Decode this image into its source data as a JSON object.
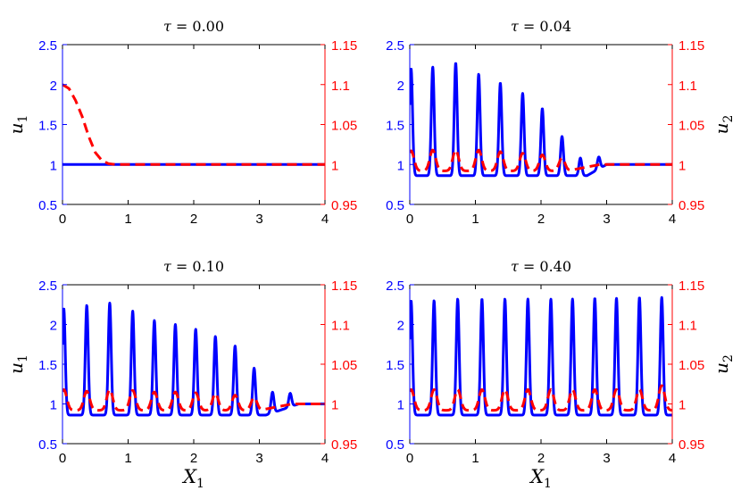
{
  "figure": {
    "colors": {
      "u1": "#0000ff",
      "u2": "#ff0000",
      "axes": "#000000"
    }
  },
  "chart_data": [
    {
      "type": "line",
      "title": "τ = 0.00",
      "title_parts": {
        "sym": "τ",
        "rest": " = 0.00"
      },
      "xlabel": "",
      "ylabel_left": {
        "base": "u",
        "sub": "1"
      },
      "ylabel_right": null,
      "xlim": [
        0,
        4
      ],
      "ylim_left": [
        0.5,
        2.5
      ],
      "ylim_right": [
        0.95,
        1.15
      ],
      "xticks": [
        "0",
        "1",
        "2",
        "3",
        "4"
      ],
      "yticks_left": [
        "0.5",
        "1",
        "1.5",
        "2",
        "2.5"
      ],
      "yticks_right": [
        "0.95",
        "1",
        "1.05",
        "1.1",
        "1.15"
      ],
      "series": [
        {
          "name": "u1",
          "axis": "left",
          "style": "solid",
          "model": "flat",
          "base": 1.0
        },
        {
          "name": "u2",
          "axis": "right",
          "style": "dashed",
          "model": "decay",
          "points": [
            [
              0,
              1.1
            ],
            [
              0.1,
              1.095
            ],
            [
              0.2,
              1.08
            ],
            [
              0.3,
              1.06
            ],
            [
              0.4,
              1.035
            ],
            [
              0.5,
              1.015
            ],
            [
              0.6,
              1.005
            ],
            [
              0.7,
              1.001
            ],
            [
              0.8,
              1.0
            ],
            [
              4,
              1.0
            ]
          ]
        }
      ]
    },
    {
      "type": "line",
      "title": "τ = 0.04",
      "title_parts": {
        "sym": "τ",
        "rest": " = 0.04"
      },
      "xlabel": "",
      "ylabel_left": null,
      "ylabel_right": {
        "base": "u",
        "sub": "2"
      },
      "xlim": [
        0,
        4
      ],
      "ylim_left": [
        0.5,
        2.5
      ],
      "ylim_right": [
        0.95,
        1.15
      ],
      "xticks": [
        "0",
        "1",
        "2",
        "3",
        "4"
      ],
      "yticks_left": [
        "0.5",
        "1",
        "1.5",
        "2",
        "2.5"
      ],
      "yticks_right": [
        "0.95",
        "1",
        "1.05",
        "1.1",
        "1.15"
      ],
      "series": [
        {
          "name": "u1",
          "axis": "left",
          "style": "solid",
          "model": "spikes",
          "base": 0.86,
          "tail": 1.0,
          "spikes": [
            [
              0.02,
              2.2
            ],
            [
              0.35,
              2.22
            ],
            [
              0.7,
              2.27
            ],
            [
              1.05,
              2.13
            ],
            [
              1.38,
              2.02
            ],
            [
              1.72,
              1.89
            ],
            [
              2.02,
              1.7
            ],
            [
              2.32,
              1.35
            ],
            [
              2.6,
              1.08
            ],
            [
              2.88,
              1.01
            ]
          ],
          "fade": [
            2.7,
            3.0
          ]
        },
        {
          "name": "u2",
          "axis": "right",
          "style": "dashed",
          "model": "bumps",
          "base": 0.992,
          "tail": 1.0,
          "bumps": [
            [
              0.02,
              1.017
            ],
            [
              0.35,
              1.018
            ],
            [
              0.7,
              1.018
            ],
            [
              1.05,
              1.018
            ],
            [
              1.38,
              1.016
            ],
            [
              1.72,
              1.014
            ],
            [
              2.02,
              1.012
            ],
            [
              2.32,
              1.008
            ]
          ],
          "fade": [
            2.4,
            2.9
          ]
        }
      ]
    },
    {
      "type": "line",
      "title": "τ = 0.10",
      "title_parts": {
        "sym": "τ",
        "rest": " = 0.10"
      },
      "xlabel": "X1",
      "xlabel_parts": {
        "base": "X",
        "sub": "1"
      },
      "ylabel_left": {
        "base": "u",
        "sub": "1"
      },
      "ylabel_right": null,
      "xlim": [
        0,
        4
      ],
      "ylim_left": [
        0.5,
        2.5
      ],
      "ylim_right": [
        0.95,
        1.15
      ],
      "xticks": [
        "0",
        "1",
        "2",
        "3",
        "4"
      ],
      "yticks_left": [
        "0.5",
        "1",
        "1.5",
        "2",
        "2.5"
      ],
      "yticks_right": [
        "0.95",
        "1",
        "1.05",
        "1.1",
        "1.15"
      ],
      "series": [
        {
          "name": "u1",
          "axis": "left",
          "style": "solid",
          "model": "spikes",
          "base": 0.86,
          "tail": 1.0,
          "spikes": [
            [
              0.02,
              2.2
            ],
            [
              0.37,
              2.24
            ],
            [
              0.72,
              2.27
            ],
            [
              1.07,
              2.17
            ],
            [
              1.4,
              2.05
            ],
            [
              1.72,
              2.0
            ],
            [
              2.03,
              1.94
            ],
            [
              2.33,
              1.85
            ],
            [
              2.63,
              1.73
            ],
            [
              2.92,
              1.45
            ],
            [
              3.2,
              1.12
            ],
            [
              3.47,
              1.03
            ]
          ],
          "fade": [
            3.1,
            3.6
          ]
        },
        {
          "name": "u2",
          "axis": "right",
          "style": "dashed",
          "model": "bumps",
          "base": 0.992,
          "tail": 1.0,
          "bumps": [
            [
              0.02,
              1.018
            ],
            [
              0.37,
              1.016
            ],
            [
              0.72,
              1.018
            ],
            [
              1.07,
              1.017
            ],
            [
              1.4,
              1.015
            ],
            [
              1.72,
              1.015
            ],
            [
              2.03,
              1.014
            ],
            [
              2.33,
              1.013
            ],
            [
              2.63,
              1.011
            ],
            [
              2.92,
              1.008
            ]
          ],
          "fade": [
            3.0,
            3.5
          ]
        }
      ]
    },
    {
      "type": "line",
      "title": "τ = 0.40",
      "title_parts": {
        "sym": "τ",
        "rest": " = 0.40"
      },
      "xlabel": "X1",
      "xlabel_parts": {
        "base": "X",
        "sub": "1"
      },
      "ylabel_left": null,
      "ylabel_right": {
        "base": "u",
        "sub": "2"
      },
      "xlim": [
        0,
        4
      ],
      "ylim_left": [
        0.5,
        2.5
      ],
      "ylim_right": [
        0.95,
        1.15
      ],
      "xticks": [
        "0",
        "1",
        "2",
        "3",
        "4"
      ],
      "yticks_left": [
        "0.5",
        "1",
        "1.5",
        "2",
        "2.5"
      ],
      "yticks_right": [
        "0.95",
        "1",
        "1.05",
        "1.1",
        "1.15"
      ],
      "series": [
        {
          "name": "u1",
          "axis": "left",
          "style": "solid",
          "model": "spikes",
          "base": 0.86,
          "tail": 0.86,
          "spikes": [
            [
              0.02,
              2.3
            ],
            [
              0.37,
              2.3
            ],
            [
              0.73,
              2.32
            ],
            [
              1.1,
              2.32
            ],
            [
              1.45,
              2.32
            ],
            [
              1.8,
              2.32
            ],
            [
              2.15,
              2.32
            ],
            [
              2.48,
              2.32
            ],
            [
              2.82,
              2.33
            ],
            [
              3.15,
              2.33
            ],
            [
              3.5,
              2.34
            ],
            [
              3.84,
              2.34
            ]
          ],
          "fade": [
            4.0,
            4.1
          ]
        },
        {
          "name": "u2",
          "axis": "right",
          "style": "dashed",
          "model": "bumps",
          "base": 0.992,
          "tail": 0.992,
          "bumps": [
            [
              0.02,
              1.018
            ],
            [
              0.37,
              1.018
            ],
            [
              0.73,
              1.018
            ],
            [
              1.1,
              1.018
            ],
            [
              1.45,
              1.018
            ],
            [
              1.8,
              1.018
            ],
            [
              2.15,
              1.018
            ],
            [
              2.48,
              1.018
            ],
            [
              2.82,
              1.018
            ],
            [
              3.15,
              1.018
            ],
            [
              3.5,
              1.018
            ],
            [
              3.84,
              1.023
            ]
          ],
          "fade": [
            4.0,
            4.1
          ]
        }
      ]
    }
  ]
}
